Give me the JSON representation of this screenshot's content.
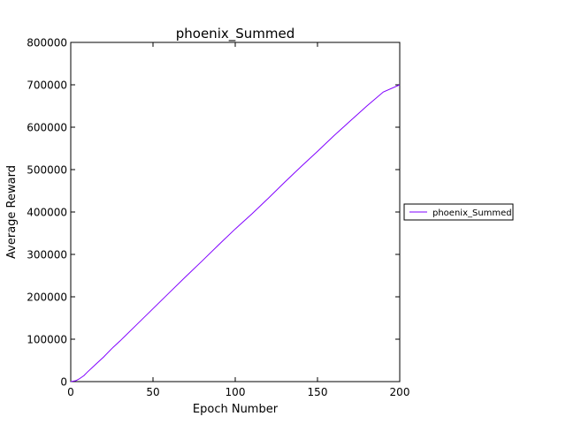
{
  "chart_data": {
    "type": "line",
    "title": "phoenix_Summed",
    "xlabel": "Epoch Number",
    "ylabel": "Average Reward",
    "xlim": [
      0,
      200
    ],
    "ylim": [
      0,
      800000
    ],
    "x_ticks": [
      0,
      50,
      100,
      150,
      200
    ],
    "y_ticks": [
      0,
      100000,
      200000,
      300000,
      400000,
      500000,
      600000,
      700000,
      800000
    ],
    "grid": false,
    "legend_position": "outside-right",
    "series": [
      {
        "name": "phoenix_Summed",
        "color": "#8000ff",
        "x": [
          0,
          3,
          5,
          8,
          10,
          15,
          20,
          25,
          30,
          40,
          50,
          60,
          70,
          80,
          90,
          100,
          110,
          120,
          130,
          140,
          150,
          160,
          170,
          180,
          190,
          200
        ],
        "y": [
          0,
          2000,
          6000,
          14000,
          22000,
          40000,
          58000,
          78000,
          96000,
          134000,
          172000,
          210000,
          248000,
          285000,
          323000,
          360000,
          395000,
          432000,
          470000,
          507000,
          543000,
          580000,
          615000,
          650000,
          683000,
          700000
        ]
      }
    ]
  }
}
